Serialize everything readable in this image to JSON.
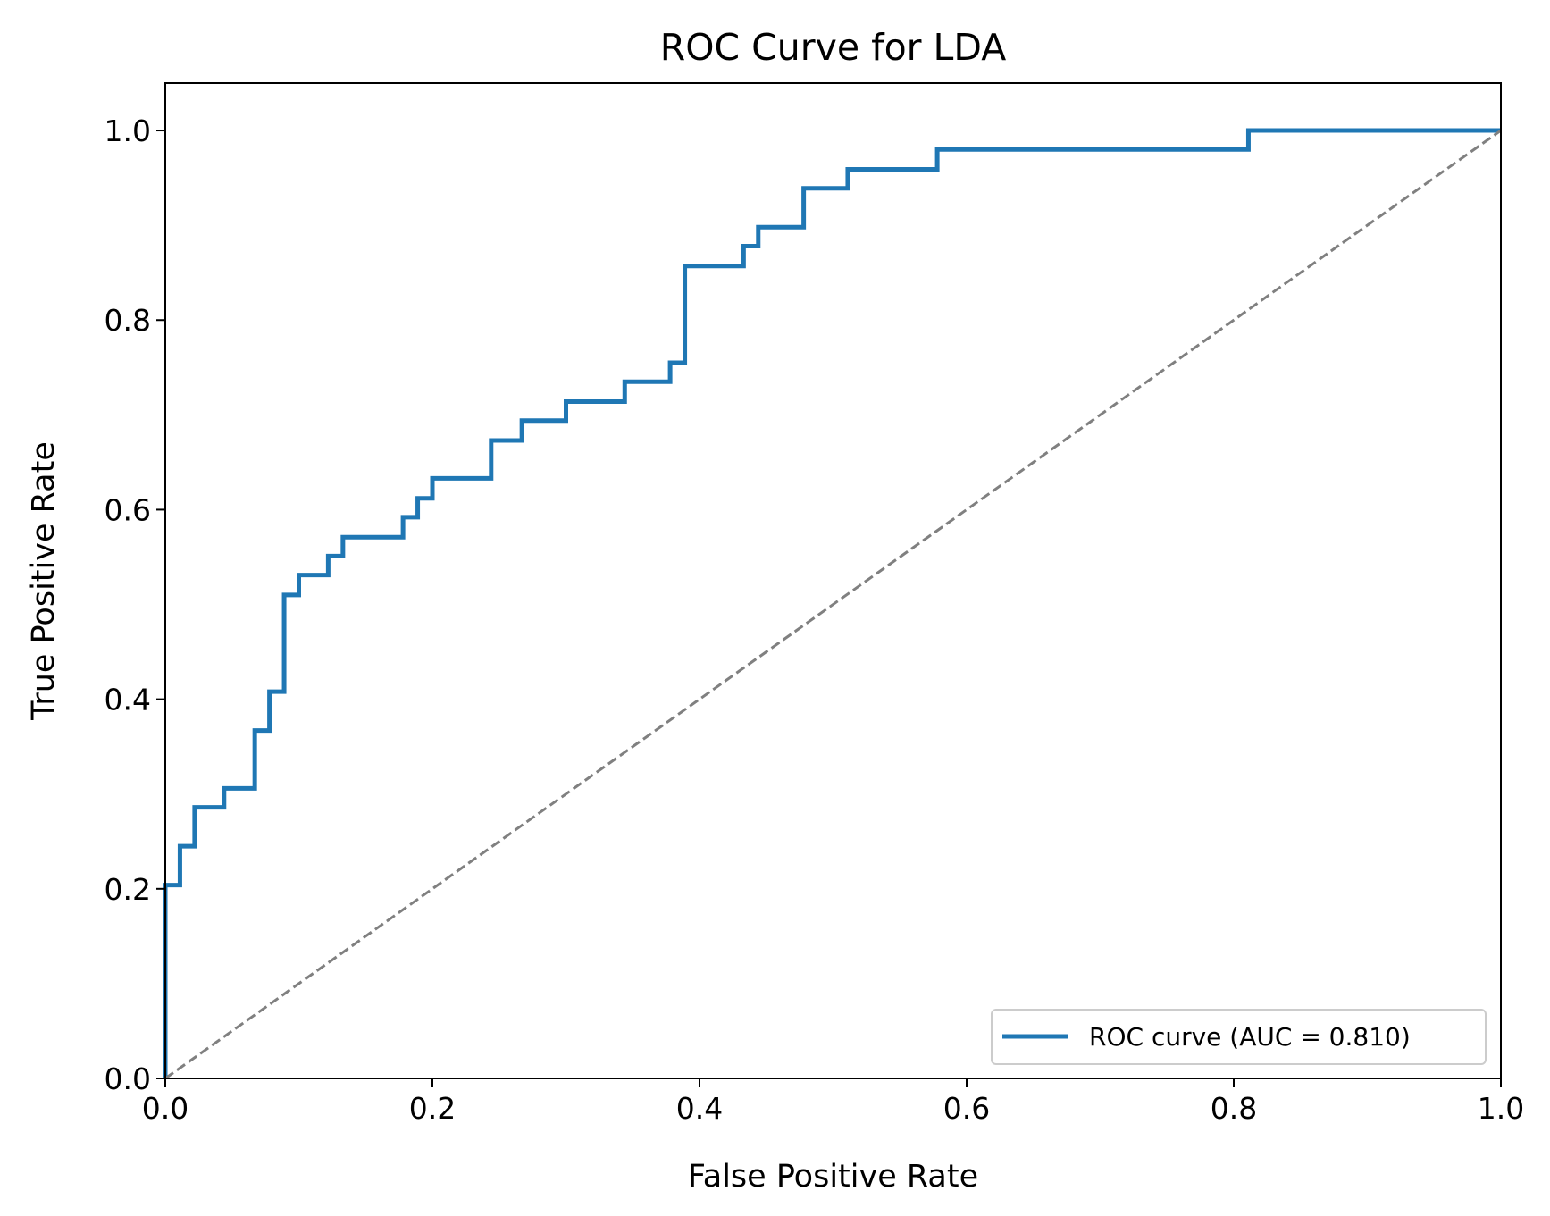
{
  "chart_data": {
    "type": "line",
    "title": "ROC Curve for LDA",
    "xlabel": "False Positive Rate",
    "ylabel": "True Positive Rate",
    "xlim": [
      0.0,
      1.0
    ],
    "ylim": [
      0.0,
      1.05
    ],
    "xticks": [
      "0.0",
      "0.2",
      "0.4",
      "0.6",
      "0.8",
      "1.0"
    ],
    "yticks": [
      "0.0",
      "0.2",
      "0.4",
      "0.6",
      "0.8",
      "1.0"
    ],
    "grid": false,
    "legend": {
      "location": "lower-right",
      "entries": [
        "ROC curve (AUC = 0.810)"
      ]
    },
    "series": [
      {
        "name": "ROC curve (AUC = 0.810)",
        "color": "#1f77b4",
        "style": "solid",
        "x": [
          0,
          0,
          0.011,
          0.011,
          0.022,
          0.022,
          0.044,
          0.044,
          0.067,
          0.067,
          0.078,
          0.078,
          0.089,
          0.089,
          0.1,
          0.1,
          0.122,
          0.122,
          0.133,
          0.133,
          0.178,
          0.178,
          0.189,
          0.189,
          0.2,
          0.2,
          0.244,
          0.244,
          0.267,
          0.267,
          0.3,
          0.3,
          0.344,
          0.344,
          0.378,
          0.378,
          0.389,
          0.389,
          0.433,
          0.433,
          0.444,
          0.444,
          0.478,
          0.478,
          0.511,
          0.511,
          0.578,
          0.578,
          0.811,
          0.811,
          1.0
        ],
        "y": [
          0,
          0.204,
          0.204,
          0.245,
          0.245,
          0.286,
          0.286,
          0.306,
          0.306,
          0.367,
          0.367,
          0.408,
          0.408,
          0.51,
          0.51,
          0.531,
          0.531,
          0.551,
          0.551,
          0.571,
          0.571,
          0.592,
          0.592,
          0.612,
          0.612,
          0.633,
          0.633,
          0.673,
          0.673,
          0.694,
          0.694,
          0.714,
          0.714,
          0.735,
          0.735,
          0.755,
          0.755,
          0.857,
          0.857,
          0.878,
          0.878,
          0.898,
          0.898,
          0.939,
          0.939,
          0.959,
          0.959,
          0.98,
          0.98,
          1.0,
          1.0
        ]
      },
      {
        "name": "",
        "color": "#808080",
        "style": "dashed",
        "x": [
          0,
          1
        ],
        "y": [
          0,
          1
        ]
      }
    ]
  }
}
